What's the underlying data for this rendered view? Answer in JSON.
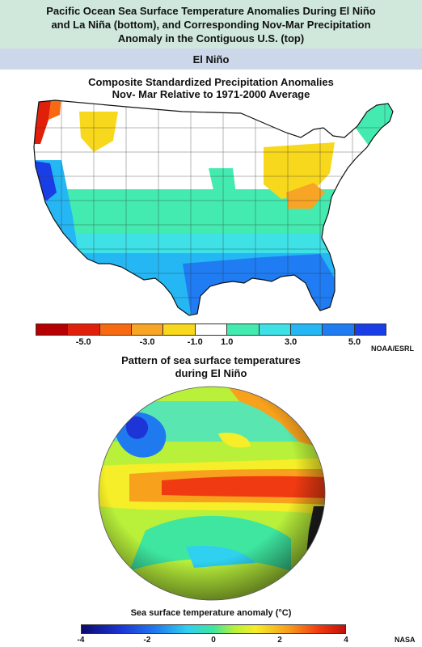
{
  "header": {
    "line1": "Pacific Ocean Sea Surface Temperature Anomalies During El Niño",
    "line2": "and La Niña (bottom), and Corresponding Nov-Mar Precipitation",
    "line3": "Anomaly in the Contiguous U.S. (top)"
  },
  "subheader": {
    "label": "El Niño"
  },
  "precip_map": {
    "title_line1": "Composite Standardized Precipitation Anomalies",
    "title_line2": "Nov- Mar Relative to 1971-2000 Average",
    "colorbar": {
      "colors": [
        "#b40000",
        "#e0200a",
        "#f86a12",
        "#f8a424",
        "#f8d81c",
        "#ffffff",
        "#44ebb0",
        "#3ee1e6",
        "#25b7f4",
        "#1f7cf2",
        "#1a3ee6"
      ],
      "tick_labels": [
        "-5.0",
        "-3.0",
        "-1.0",
        "1.0",
        "3.0",
        "5.0"
      ]
    },
    "credit": "NOAA/ESRL"
  },
  "sst": {
    "title_line1": "Pattern of sea surface temperatures",
    "title_line2": "during El Niño",
    "colorbar_label": "Sea surface temperature anomaly (°C)",
    "tick_labels": [
      "-4",
      "-2",
      "0",
      "2",
      "4"
    ],
    "credit": "NASA"
  }
}
